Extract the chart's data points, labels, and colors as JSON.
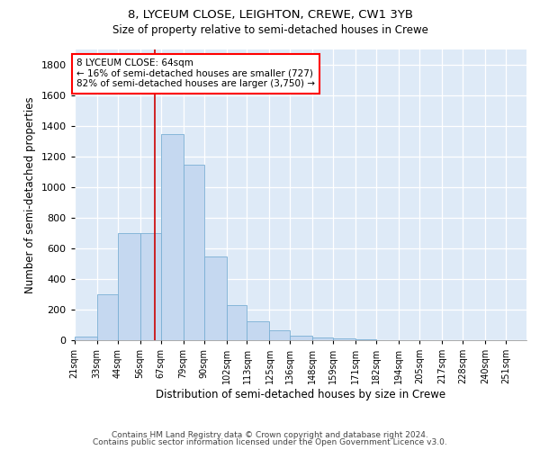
{
  "title": "8, LYCEUM CLOSE, LEIGHTON, CREWE, CW1 3YB",
  "subtitle": "Size of property relative to semi-detached houses in Crewe",
  "xlabel": "Distribution of semi-detached houses by size in Crewe",
  "ylabel": "Number of semi-detached properties",
  "bar_color": "#c5d8f0",
  "bar_edge_color": "#7aafd4",
  "background_color": "#deeaf7",
  "annotation_text": "8 LYCEUM CLOSE: 64sqm\n← 16% of semi-detached houses are smaller (727)\n82% of semi-detached houses are larger (3,750) →",
  "vline_x": 64,
  "vline_color": "#cc0000",
  "footer1": "Contains HM Land Registry data © Crown copyright and database right 2024.",
  "footer2": "Contains public sector information licensed under the Open Government Licence v3.0.",
  "categories": [
    "21sqm",
    "33sqm",
    "44sqm",
    "56sqm",
    "67sqm",
    "79sqm",
    "90sqm",
    "102sqm",
    "113sqm",
    "125sqm",
    "136sqm",
    "148sqm",
    "159sqm",
    "171sqm",
    "182sqm",
    "194sqm",
    "205sqm",
    "217sqm",
    "228sqm",
    "240sqm",
    "251sqm"
  ],
  "bin_edges": [
    21,
    33,
    44,
    56,
    67,
    79,
    90,
    102,
    113,
    125,
    136,
    148,
    159,
    171,
    182,
    194,
    205,
    217,
    228,
    240,
    251,
    262
  ],
  "values": [
    25,
    300,
    700,
    700,
    1350,
    1150,
    550,
    230,
    125,
    65,
    30,
    20,
    10,
    5,
    3,
    2,
    1,
    1,
    0,
    0,
    0
  ],
  "ylim": [
    0,
    1900
  ],
  "yticks": [
    0,
    200,
    400,
    600,
    800,
    1000,
    1200,
    1400,
    1600,
    1800
  ]
}
